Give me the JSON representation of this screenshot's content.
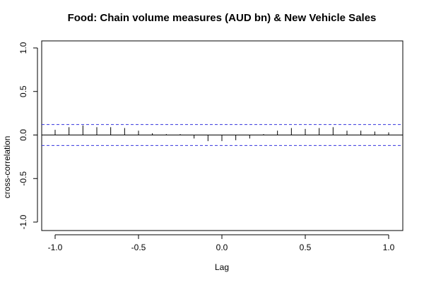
{
  "chart_data": {
    "type": "bar",
    "title": "Food: Chain volume measures (AUD bn) & New Vehicle Sales",
    "xlabel": "Lag",
    "ylabel": "cross-correlation",
    "xlim": [
      -1.0,
      1.0
    ],
    "ylim": [
      -1.0,
      1.0
    ],
    "x_ticks": [
      -1.0,
      -0.5,
      0.0,
      0.5,
      1.0
    ],
    "x_tick_labels": [
      "-1.0",
      "-0.5",
      "0.0",
      "0.5",
      "1.0"
    ],
    "y_ticks": [
      -1.0,
      -0.5,
      0.0,
      0.5,
      1.0
    ],
    "y_tick_labels": [
      "-1.0",
      "-0.5",
      "0.0",
      "0.5",
      "1.0"
    ],
    "confidence_bound": 0.12,
    "confidence_color": "#3333dd",
    "bar_color": "#000000",
    "grid": false,
    "series": [
      {
        "x": [
          -1.0,
          -0.9167,
          -0.8333,
          -0.75,
          -0.6667,
          -0.5833,
          -0.5,
          -0.4167,
          -0.3333,
          -0.25,
          -0.1667,
          -0.0833,
          0.0,
          0.0833,
          0.1667,
          0.25,
          0.3333,
          0.4167,
          0.5,
          0.5833,
          0.6667,
          0.75,
          0.8333,
          0.9167,
          1.0
        ],
        "values": [
          0.06,
          0.09,
          0.11,
          0.09,
          0.09,
          0.08,
          0.05,
          0.02,
          0.01,
          0.01,
          -0.04,
          -0.07,
          -0.07,
          -0.06,
          -0.04,
          0.01,
          0.05,
          0.08,
          0.07,
          0.08,
          0.09,
          0.05,
          0.05,
          0.04,
          0.03
        ]
      }
    ]
  }
}
